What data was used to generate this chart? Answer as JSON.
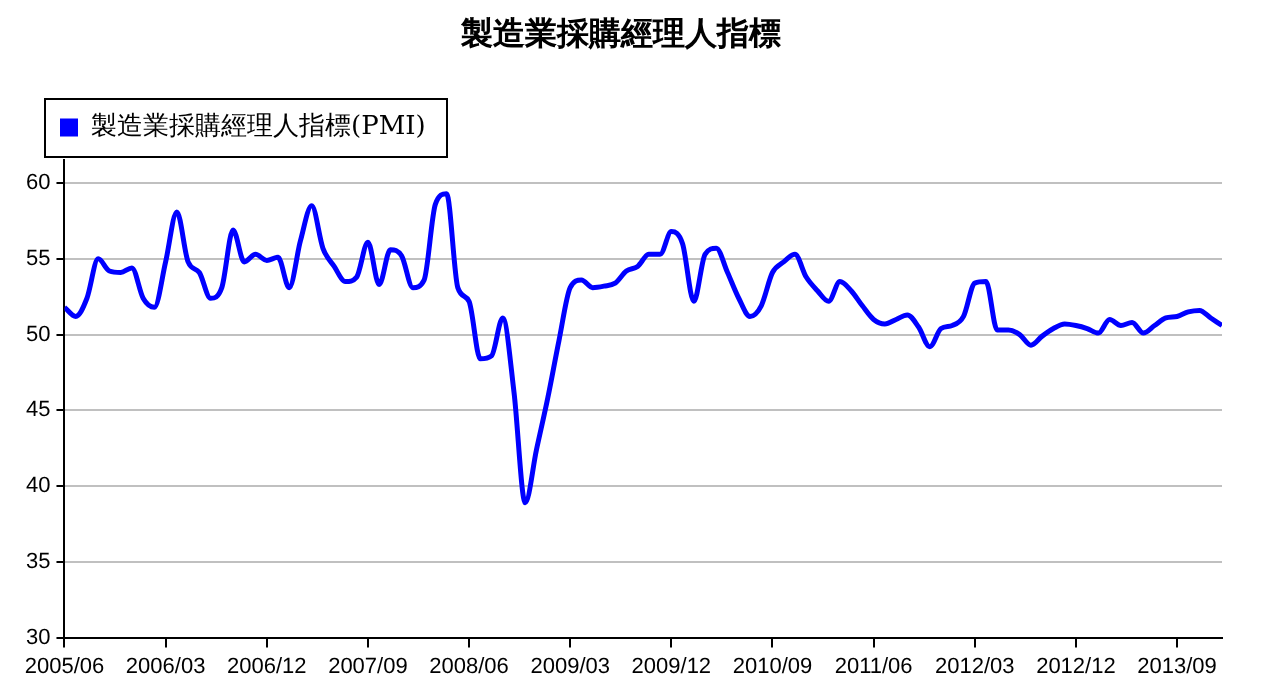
{
  "chart_data": {
    "type": "line",
    "title": "製造業採購經理人指標",
    "categories": [
      "2005/06",
      null,
      null,
      null,
      null,
      null,
      null,
      null,
      null,
      "2006/03",
      null,
      null,
      null,
      null,
      null,
      null,
      null,
      null,
      "2006/12",
      null,
      null,
      null,
      null,
      null,
      null,
      null,
      null,
      "2007/09",
      null,
      null,
      null,
      null,
      null,
      null,
      null,
      null,
      "2008/06",
      null,
      null,
      null,
      null,
      null,
      null,
      null,
      null,
      "2009/03",
      null,
      null,
      null,
      null,
      null,
      null,
      null,
      null,
      "2009/12",
      null,
      null,
      null,
      null,
      null,
      null,
      null,
      null,
      "2010/09",
      null,
      null,
      null,
      null,
      null,
      null,
      null,
      null,
      "2011/06",
      null,
      null,
      null,
      null,
      null,
      null,
      null,
      null,
      "2012/03",
      null,
      null,
      null,
      null,
      null,
      null,
      null,
      null,
      "2012/12",
      null,
      null,
      null,
      null,
      null,
      null,
      null,
      null,
      "2013/09",
      null,
      null,
      null,
      null
    ],
    "series": [
      {
        "name": "製造業採購經理人指標(PMI)",
        "color": "#0000ff",
        "values": [
          51.8,
          51.2,
          52.4,
          55.0,
          54.2,
          54.1,
          54.4,
          52.4,
          51.8,
          54.8,
          58.1,
          54.8,
          54.1,
          52.4,
          53.1,
          56.9,
          54.8,
          55.3,
          54.9,
          55.1,
          53.1,
          56.2,
          58.5,
          55.7,
          54.5,
          53.5,
          53.8,
          56.1,
          53.3,
          55.6,
          55.2,
          53.1,
          53.6,
          58.6,
          59.3,
          53.1,
          52.2,
          48.4,
          48.6,
          51.1,
          46.2,
          38.9,
          42.4,
          45.8,
          49.6,
          53.1,
          53.6,
          53.1,
          53.2,
          53.4,
          54.2,
          54.5,
          55.3,
          55.3,
          56.8,
          56.0,
          52.2,
          55.3,
          55.7,
          54.1,
          52.4,
          51.2,
          51.9,
          54.1,
          54.8,
          55.3,
          53.8,
          52.9,
          52.2,
          53.5,
          52.9,
          51.9,
          51.0,
          50.7,
          51.0,
          51.3,
          50.5,
          49.2,
          50.4,
          50.6,
          51.2,
          53.4,
          53.5,
          50.3,
          50.3,
          50.0,
          49.3,
          49.9,
          50.4,
          50.7,
          50.6,
          50.4,
          50.1,
          51.0,
          50.6,
          50.8,
          50.1,
          50.6,
          51.1,
          51.2,
          51.5,
          51.6,
          51.1,
          50.6
        ]
      }
    ],
    "ylim": [
      30,
      61.5
    ],
    "yticks": [
      30,
      35,
      40,
      45,
      50,
      55,
      60
    ],
    "grid": "y",
    "legend": "top left",
    "marker": "none",
    "line_style": "solid"
  }
}
